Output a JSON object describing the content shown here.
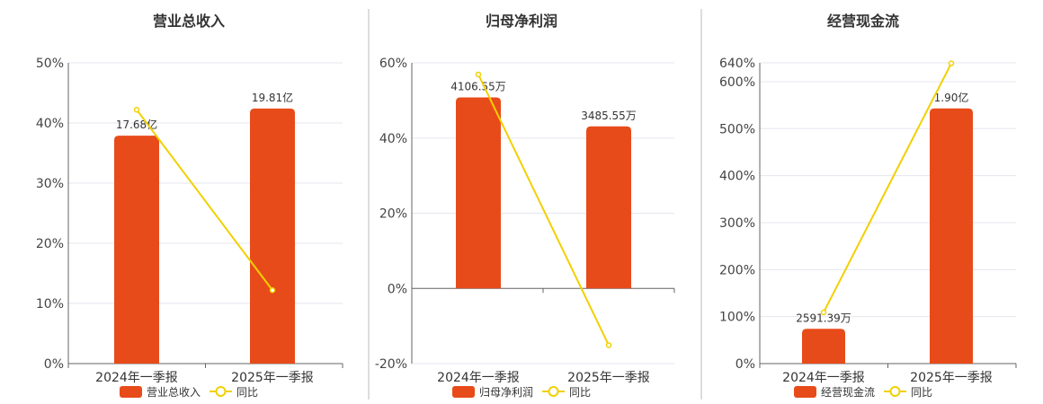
{
  "colors": {
    "bar": "#E84B1A",
    "line": "#F2D000",
    "point_fill": "#ffffff"
  },
  "chart_data": [
    {
      "type": "bar",
      "title": "营业总收入",
      "categories": [
        "2024年一季报",
        "2025年一季报"
      ],
      "bar_series": {
        "name": "营业总收入",
        "values": [
          37.9,
          42.4
        ],
        "labels": [
          "17.68亿",
          "19.81亿"
        ]
      },
      "line_series": {
        "name": "同比",
        "values": [
          42.2,
          12.2
        ]
      },
      "yticks": [
        0,
        10,
        20,
        30,
        40,
        50
      ],
      "tick_labels": [
        "0%",
        "10%",
        "20%",
        "30%",
        "40%",
        "50%"
      ],
      "ylim": [
        0,
        50
      ],
      "legend": "bottom"
    },
    {
      "type": "bar",
      "title": "归母净利润",
      "categories": [
        "2024年一季报",
        "2025年一季报"
      ],
      "bar_series": {
        "name": "归母净利润",
        "values": [
          50.8,
          43.1
        ],
        "labels": [
          "4106.55万",
          "3485.55万"
        ]
      },
      "line_series": {
        "name": "同比",
        "values": [
          56.9,
          -15.1
        ]
      },
      "yticks": [
        -20,
        0,
        20,
        40,
        60
      ],
      "tick_labels": [
        "-20%",
        "0%",
        "20%",
        "40%",
        "60%"
      ],
      "ylim": [
        -20,
        60
      ],
      "legend": "bottom"
    },
    {
      "type": "bar",
      "title": "经营现金流",
      "categories": [
        "2024年一季报",
        "2025年一季报"
      ],
      "bar_series": {
        "name": "经营现金流",
        "values": [
          74,
          543
        ],
        "labels": [
          "2591.39万",
          "1.90亿"
        ]
      },
      "line_series": {
        "name": "同比",
        "values": [
          109,
          639
        ]
      },
      "yticks": [
        0,
        100,
        200,
        300,
        400,
        500,
        600,
        640
      ],
      "tick_labels": [
        "0%",
        "100%",
        "200%",
        "300%",
        "400%",
        "500%",
        "600%",
        "640%"
      ],
      "ylim": [
        0,
        640
      ],
      "legend": "bottom"
    }
  ]
}
